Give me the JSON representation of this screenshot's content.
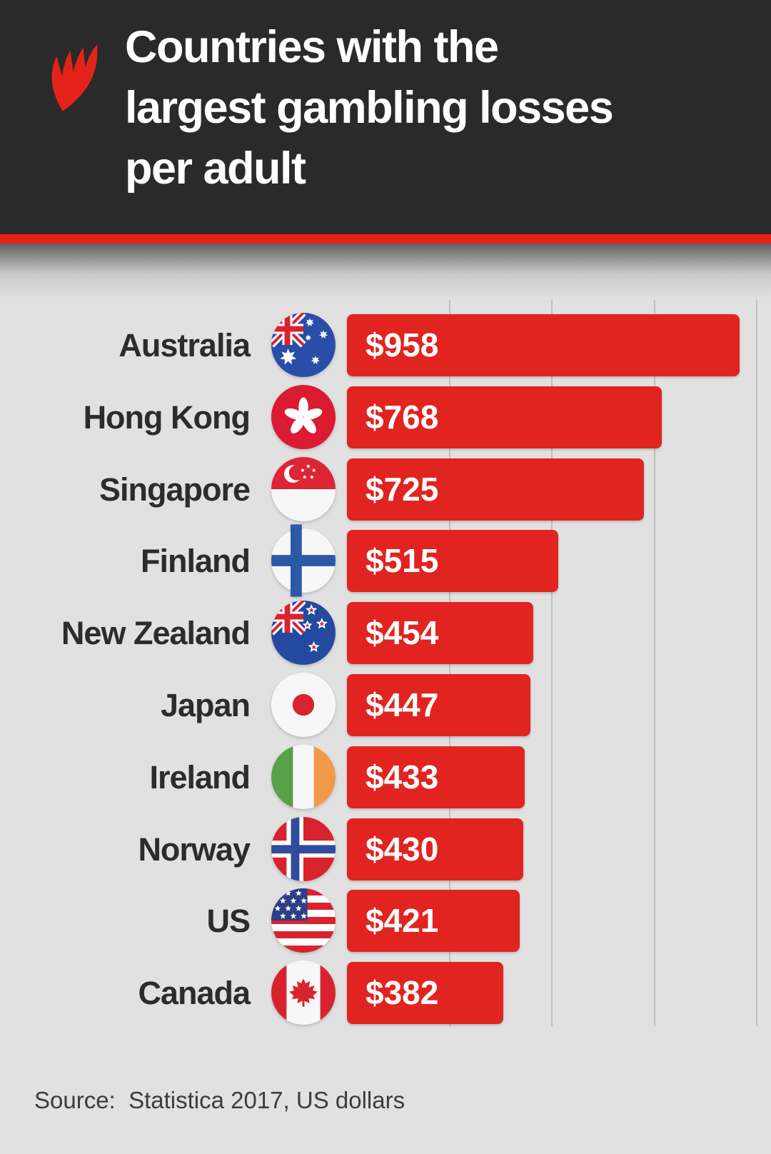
{
  "header": {
    "title_lines": [
      "Countries with the",
      "largest gambling losses",
      "per adult"
    ],
    "logo_name": "sbs-logo"
  },
  "chart_data": {
    "type": "bar",
    "orientation": "horizontal",
    "title": "Countries with the largest gambling losses per adult",
    "unit": "US dollars per adult",
    "categories": [
      "Australia",
      "Hong Kong",
      "Singapore",
      "Finland",
      "New Zealand",
      "Japan",
      "Ireland",
      "Norway",
      "US",
      "Canada"
    ],
    "values": [
      958,
      768,
      725,
      515,
      454,
      447,
      433,
      430,
      421,
      382
    ],
    "value_labels": [
      "$958",
      "$768",
      "$725",
      "$515",
      "$454",
      "$447",
      "$433",
      "$430",
      "$421",
      "$382"
    ],
    "flags": [
      "australia",
      "hong-kong",
      "singapore",
      "finland",
      "new-zealand",
      "japan",
      "ireland",
      "norway",
      "us",
      "canada"
    ],
    "xlim": [
      0,
      1035
    ],
    "gridline_values": [
      250,
      500,
      750,
      1000
    ],
    "grid": true,
    "legend": false,
    "axis_tick_labels_visible": false,
    "bar_color": "#e12420"
  },
  "footer": {
    "source": "Source:  Statistica 2017, US dollars"
  },
  "colors": {
    "header_bg": "#2b2a2a",
    "accent_line": "#e42318",
    "logo_red": "#e42318",
    "background": "#e1e1e1",
    "bar": "#e12420",
    "label_text": "#2c2c2c",
    "value_text": "#ffffff",
    "source_text": "#3c3c3c",
    "gridline": "#bfbfbf"
  }
}
